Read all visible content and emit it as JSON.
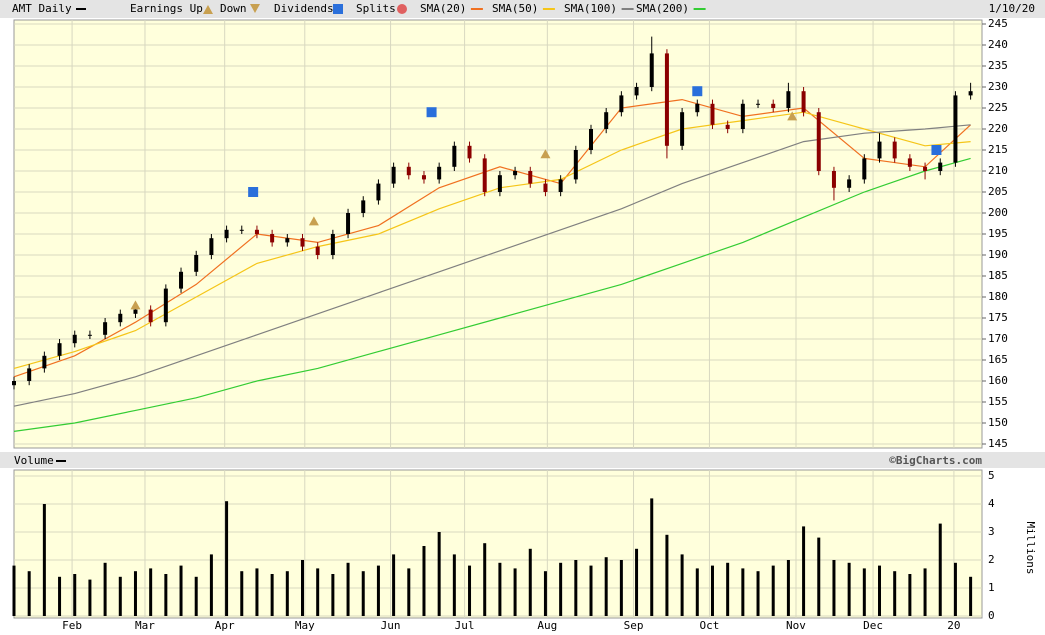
{
  "chart_data": [
    {
      "type": "candlestick",
      "title": "AMT Daily",
      "date_label": "1/10/20",
      "legend_labels": {
        "earnings_up": "Earnings Up",
        "earnings_down": "Down",
        "dividends": "Dividends",
        "splits": "Splits"
      },
      "up_color": "#000000",
      "down_color": "#8b0000",
      "xlim": [
        0,
        255
      ],
      "ylim": [
        145,
        245
      ],
      "yticks": [
        145,
        150,
        155,
        160,
        165,
        170,
        175,
        180,
        185,
        190,
        195,
        200,
        205,
        210,
        215,
        220,
        225,
        230,
        235,
        240,
        245
      ],
      "grid": true,
      "x": [
        0,
        4,
        8,
        12,
        16,
        20,
        24,
        28,
        32,
        36,
        40,
        44,
        48,
        52,
        56,
        60,
        64,
        68,
        72,
        76,
        80,
        84,
        88,
        92,
        96,
        100,
        104,
        108,
        112,
        116,
        120,
        124,
        128,
        132,
        136,
        140,
        144,
        148,
        152,
        156,
        160,
        164,
        168,
        172,
        176,
        180,
        184,
        188,
        192,
        196,
        200,
        204,
        208,
        212,
        216,
        220,
        224,
        228,
        232,
        236,
        240,
        244,
        248,
        252
      ],
      "open": [
        159,
        160,
        163,
        166,
        169,
        171,
        171,
        174,
        176,
        177,
        174,
        182,
        186,
        190,
        194,
        196,
        196,
        195,
        193,
        194,
        192,
        190,
        195,
        200,
        203,
        207,
        211,
        209,
        208,
        211,
        216,
        213,
        205,
        209,
        210,
        207,
        205,
        208,
        215,
        220,
        224,
        228,
        230,
        238,
        216,
        224,
        226,
        221,
        220,
        226,
        226,
        225,
        229,
        224,
        210,
        206,
        208,
        213,
        217,
        213,
        211,
        210,
        212,
        228
      ],
      "high": [
        161,
        164,
        167,
        170,
        172,
        172,
        175,
        177,
        178,
        178,
        183,
        187,
        191,
        195,
        197,
        197,
        197,
        196,
        195,
        195,
        193,
        196,
        201,
        204,
        208,
        212,
        212,
        210,
        212,
        217,
        217,
        214,
        210,
        211,
        211,
        208,
        209,
        216,
        221,
        225,
        229,
        231,
        242,
        239,
        225,
        227,
        227,
        222,
        227,
        227,
        227,
        231,
        230,
        225,
        211,
        209,
        214,
        219,
        218,
        214,
        212,
        213,
        229,
        231
      ],
      "low": [
        158,
        159,
        162,
        165,
        168,
        170,
        170,
        173,
        175,
        173,
        173,
        181,
        185,
        189,
        193,
        195,
        194,
        192,
        192,
        191,
        189,
        189,
        194,
        199,
        202,
        206,
        208,
        207,
        207,
        210,
        212,
        204,
        204,
        208,
        206,
        204,
        204,
        207,
        214,
        219,
        223,
        227,
        229,
        213,
        215,
        223,
        220,
        219,
        219,
        225,
        224,
        224,
        223,
        209,
        203,
        205,
        207,
        212,
        212,
        210,
        208,
        209,
        211,
        227
      ],
      "close": [
        160,
        163,
        166,
        169,
        171,
        171,
        174,
        176,
        177,
        174,
        182,
        186,
        190,
        194,
        196,
        196,
        195,
        193,
        194,
        192,
        190,
        195,
        200,
        203,
        207,
        211,
        209,
        208,
        211,
        216,
        213,
        205,
        209,
        210,
        207,
        205,
        208,
        215,
        220,
        224,
        228,
        230,
        238,
        216,
        224,
        226,
        221,
        220,
        226,
        226,
        225,
        229,
        224,
        210,
        206,
        208,
        213,
        217,
        213,
        211,
        210,
        212,
        228,
        229
      ],
      "series": [
        {
          "name": "SMA(20)",
          "color": "#f07020",
          "x": [
            0,
            16,
            32,
            48,
            64,
            80,
            96,
            112,
            128,
            144,
            160,
            176,
            192,
            208,
            224,
            240,
            252
          ],
          "values": [
            161,
            166,
            174,
            183,
            195,
            193,
            197,
            206,
            211,
            207,
            225,
            227,
            223,
            225,
            213,
            211,
            221
          ]
        },
        {
          "name": "SMA(50)",
          "color": "#f5c518",
          "x": [
            0,
            16,
            32,
            48,
            64,
            80,
            96,
            112,
            128,
            144,
            160,
            176,
            192,
            208,
            224,
            240,
            252
          ],
          "values": [
            163,
            167,
            172,
            180,
            188,
            192,
            195,
            201,
            206,
            208,
            215,
            220,
            222,
            224,
            220,
            216,
            217
          ]
        },
        {
          "name": "SMA(100)",
          "color": "#808080",
          "x": [
            0,
            16,
            32,
            48,
            64,
            80,
            96,
            112,
            128,
            144,
            160,
            176,
            192,
            208,
            224,
            240,
            252
          ],
          "values": [
            154,
            157,
            161,
            166,
            171,
            176,
            181,
            186,
            191,
            196,
            201,
            207,
            212,
            217,
            219,
            220,
            221
          ]
        },
        {
          "name": "SMA(200)",
          "color": "#33cc33",
          "x": [
            0,
            16,
            32,
            48,
            64,
            80,
            96,
            112,
            128,
            144,
            160,
            176,
            192,
            208,
            224,
            240,
            252
          ],
          "values": [
            148,
            150,
            153,
            156,
            160,
            163,
            167,
            171,
            175,
            179,
            183,
            188,
            193,
            199,
            205,
            210,
            213
          ]
        }
      ],
      "earnings": {
        "x": [
          32,
          79,
          140,
          205
        ],
        "y": [
          178,
          198,
          214,
          223
        ]
      },
      "dividends": {
        "x": [
          63,
          110,
          180,
          243
        ],
        "y": [
          205,
          224,
          229,
          215
        ]
      }
    },
    {
      "type": "bar",
      "title": "Volume",
      "credit": "©BigCharts.com",
      "ylabel": "Millions",
      "color": "#000000",
      "xlim": [
        0,
        255
      ],
      "ylim": [
        0,
        5
      ],
      "yticks": [
        0,
        1,
        2,
        3,
        4,
        5
      ],
      "xticks": [
        {
          "value": 15.3,
          "label": "Feb"
        },
        {
          "value": 34.5,
          "label": "Mar"
        },
        {
          "value": 55.5,
          "label": "Apr"
        },
        {
          "value": 76.6,
          "label": "May"
        },
        {
          "value": 99.2,
          "label": "Jun"
        },
        {
          "value": 118.7,
          "label": "Jul"
        },
        {
          "value": 140.5,
          "label": "Aug"
        },
        {
          "value": 163.2,
          "label": "Sep"
        },
        {
          "value": 183.2,
          "label": "Oct"
        },
        {
          "value": 206,
          "label": "Nov"
        },
        {
          "value": 226.3,
          "label": "Dec"
        },
        {
          "value": 247.6,
          "label": "20"
        }
      ],
      "x": [
        0,
        4,
        8,
        12,
        16,
        20,
        24,
        28,
        32,
        36,
        40,
        44,
        48,
        52,
        56,
        60,
        64,
        68,
        72,
        76,
        80,
        84,
        88,
        92,
        96,
        100,
        104,
        108,
        112,
        116,
        120,
        124,
        128,
        132,
        136,
        140,
        144,
        148,
        152,
        156,
        160,
        164,
        168,
        172,
        176,
        180,
        184,
        188,
        192,
        196,
        200,
        204,
        208,
        212,
        216,
        220,
        224,
        228,
        232,
        236,
        240,
        244,
        248,
        252
      ],
      "values": [
        1.8,
        1.6,
        4.0,
        1.4,
        1.5,
        1.3,
        1.9,
        1.4,
        1.6,
        1.7,
        1.5,
        1.8,
        1.4,
        2.2,
        4.1,
        1.6,
        1.7,
        1.5,
        1.6,
        2.0,
        1.7,
        1.5,
        1.9,
        1.6,
        1.8,
        2.2,
        1.7,
        2.5,
        3.0,
        2.2,
        1.8,
        2.6,
        1.9,
        1.7,
        2.4,
        1.6,
        1.9,
        2.0,
        1.8,
        2.1,
        2.0,
        2.4,
        4.2,
        2.9,
        2.2,
        1.7,
        1.8,
        1.9,
        1.7,
        1.6,
        1.8,
        2.0,
        3.2,
        2.8,
        2.0,
        1.9,
        1.7,
        1.8,
        1.6,
        1.5,
        1.7,
        3.3,
        1.9,
        1.4
      ]
    }
  ]
}
